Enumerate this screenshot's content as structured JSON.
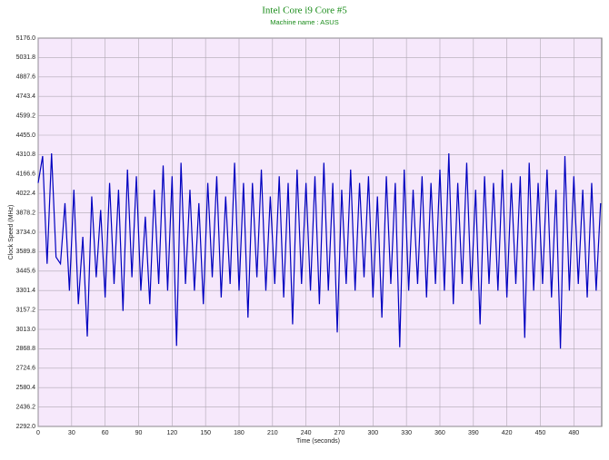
{
  "chart_data": {
    "type": "line",
    "title": "Intel Core i9 Core #5",
    "subtitle": "Machine name : ASUS",
    "x_label": "Time (seconds)",
    "y_label": "Clock Speed (MHz)",
    "color": "#0000c0",
    "grid": true,
    "xlim": [
      0,
      505
    ],
    "xticks": [
      0,
      30,
      60,
      90,
      120,
      150,
      180,
      210,
      240,
      270,
      300,
      330,
      360,
      390,
      420,
      450,
      480
    ],
    "ylim": [
      2292,
      5176
    ],
    "yticks": [
      {
        "value": 2292,
        "label": "2292.0"
      },
      2436.2,
      2580.4,
      2724.6,
      2868.8,
      {
        "value": 3013,
        "label": "3013.0"
      },
      3157.2,
      3301.4,
      3445.6,
      3589.8,
      {
        "value": 3734,
        "label": "3734.0"
      },
      3878.2,
      4022.4,
      4166.6,
      4310.8,
      {
        "value": 4455,
        "label": "4455.0"
      },
      4599.2,
      4743.4,
      4887.6,
      5031.8,
      {
        "value": 5176,
        "label": "5176.0"
      }
    ],
    "x": [
      0,
      4,
      8,
      12,
      16,
      20,
      24,
      28,
      32,
      36,
      40,
      44,
      48,
      52,
      56,
      60,
      64,
      68,
      72,
      76,
      80,
      84,
      88,
      92,
      96,
      100,
      104,
      108,
      112,
      116,
      120,
      124,
      128,
      132,
      136,
      140,
      144,
      148,
      152,
      156,
      160,
      164,
      168,
      172,
      176,
      180,
      184,
      188,
      192,
      196,
      200,
      204,
      208,
      212,
      216,
      220,
      224,
      228,
      232,
      236,
      240,
      244,
      248,
      252,
      256,
      260,
      264,
      268,
      272,
      276,
      280,
      284,
      288,
      292,
      296,
      300,
      304,
      308,
      312,
      316,
      320,
      324,
      328,
      332,
      336,
      340,
      344,
      348,
      352,
      356,
      360,
      364,
      368,
      372,
      376,
      380,
      384,
      388,
      392,
      396,
      400,
      404,
      408,
      412,
      416,
      420,
      424,
      428,
      432,
      436,
      440,
      444,
      448,
      452,
      456,
      460,
      464,
      468,
      472,
      476,
      480,
      484,
      488,
      492,
      496,
      500,
      504
    ],
    "values": [
      4100,
      4300,
      3500,
      4320,
      3550,
      3500,
      3950,
      3300,
      4050,
      3200,
      3700,
      2960,
      4000,
      3400,
      3900,
      3250,
      4100,
      3350,
      4050,
      3150,
      4200,
      3400,
      4150,
      3300,
      3850,
      3200,
      4050,
      3350,
      4230,
      3300,
      4150,
      2890,
      4250,
      3350,
      4050,
      3300,
      3950,
      3200,
      4100,
      3400,
      4150,
      3250,
      4000,
      3350,
      4250,
      3300,
      4100,
      3100,
      4100,
      3400,
      4200,
      3300,
      4000,
      3350,
      4150,
      3250,
      4100,
      3050,
      4200,
      3350,
      4100,
      3300,
      4150,
      3200,
      4250,
      3300,
      4100,
      2990,
      4050,
      3350,
      4200,
      3300,
      4100,
      3400,
      4150,
      3250,
      4000,
      3100,
      4150,
      3350,
      4100,
      2880,
      4200,
      3300,
      4050,
      3350,
      4150,
      3250,
      4100,
      3350,
      4200,
      3300,
      4320,
      3200,
      4100,
      3350,
      4250,
      3300,
      4050,
      3050,
      4150,
      3350,
      4100,
      3300,
      4200,
      3250,
      4100,
      3350,
      4150,
      2950,
      4250,
      3300,
      4100,
      3350,
      4200,
      3250,
      4050,
      2870,
      4300,
      3300,
      4150,
      3350,
      4050,
      3250,
      4100,
      3300,
      3950
    ]
  }
}
